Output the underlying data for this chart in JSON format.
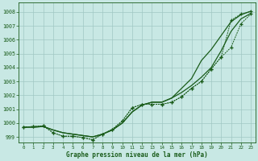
{
  "bg_color": "#c8e8e4",
  "grid_color": "#a0c8c4",
  "line_color": "#1a5c1a",
  "xlabel": "Graphe pression niveau de la mer (hPa)",
  "xlim_min": -0.5,
  "xlim_max": 23.5,
  "ylim_min": 998.6,
  "ylim_max": 1008.7,
  "yticks": [
    999,
    1000,
    1001,
    1002,
    1003,
    1004,
    1005,
    1006,
    1007,
    1008
  ],
  "xticks": [
    0,
    1,
    2,
    3,
    4,
    5,
    6,
    7,
    8,
    9,
    10,
    11,
    12,
    13,
    14,
    15,
    16,
    17,
    18,
    19,
    20,
    21,
    22,
    23
  ],
  "smooth1": [
    999.7,
    999.7,
    999.75,
    999.5,
    999.3,
    999.2,
    999.1,
    999.0,
    999.2,
    999.5,
    1000.0,
    1000.8,
    1001.3,
    1001.5,
    1001.5,
    1001.8,
    1002.2,
    1002.7,
    1003.3,
    1004.0,
    1005.2,
    1006.6,
    1007.5,
    1007.9
  ],
  "smooth2": [
    999.7,
    999.7,
    999.75,
    999.5,
    999.3,
    999.2,
    999.1,
    999.0,
    999.2,
    999.5,
    1000.0,
    1000.8,
    1001.3,
    1001.5,
    1001.5,
    1001.8,
    1002.5,
    1003.2,
    1004.5,
    1005.3,
    1006.3,
    1007.3,
    1007.8,
    1008.05
  ],
  "dotted1": [
    999.7,
    999.75,
    999.8,
    999.3,
    999.05,
    999.05,
    998.95,
    998.8,
    999.2,
    999.55,
    1000.15,
    1001.1,
    1001.35,
    1001.35,
    1001.35,
    1001.5,
    1001.9,
    1002.5,
    1003.0,
    1003.9,
    1004.75,
    1005.45,
    1007.15,
    1007.85
  ],
  "dotted2": [
    999.7,
    999.75,
    999.8,
    999.3,
    999.05,
    999.05,
    998.95,
    998.8,
    999.2,
    999.55,
    1000.15,
    1001.1,
    1001.35,
    1001.35,
    1001.35,
    1001.5,
    1001.9,
    1002.5,
    1003.0,
    1003.9,
    1004.75,
    1007.4,
    1007.85,
    1008.05
  ]
}
